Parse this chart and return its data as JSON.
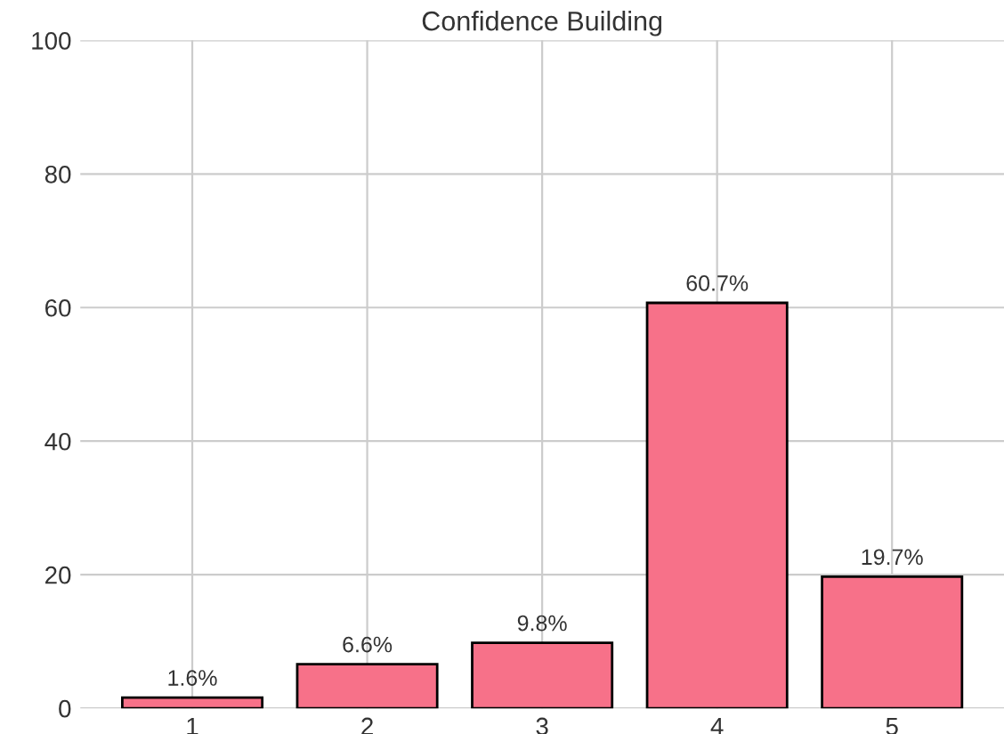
{
  "chart_data": {
    "type": "bar",
    "title": "Confidence Building",
    "categories": [
      "1",
      "2",
      "3",
      "4",
      "5"
    ],
    "values": [
      1.6,
      6.6,
      9.8,
      60.7,
      19.7
    ],
    "value_labels": [
      "1.6%",
      "6.6%",
      "9.8%",
      "60.7%",
      "19.7%"
    ],
    "color": "#f77189",
    "ylim": [
      0,
      100
    ],
    "yticks": [
      0,
      20,
      40,
      60,
      80,
      100
    ],
    "grid": true
  }
}
